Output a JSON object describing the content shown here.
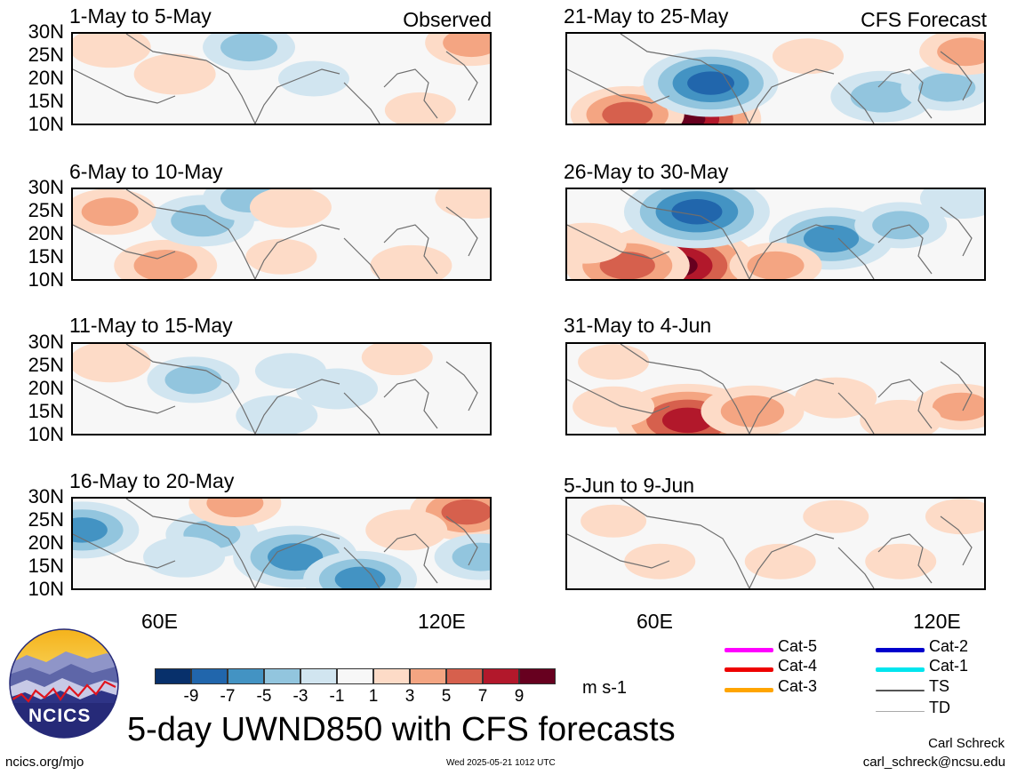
{
  "title": "5-day UWND850 with CFS forecasts",
  "units": "m s-1",
  "site": "ncics.org/mjo",
  "timestamp": "Wed 2025-05-21 1012 UTC",
  "author": "Carl Schreck",
  "email": "carl_schreck@ncsu.edu",
  "logo_text": "NCICS",
  "observed_label": "Observed",
  "forecast_label": "CFS Forecast",
  "y_ticks": [
    "30N",
    "25N",
    "20N",
    "15N",
    "10N"
  ],
  "x_ticks": [
    "60E",
    "120E"
  ],
  "colorbar": {
    "colors": [
      "#08306b",
      "#2166ac",
      "#4393c3",
      "#92c5de",
      "#d1e5f0",
      "#f7f7f7",
      "#fddbc7",
      "#f4a582",
      "#d6604d",
      "#b2182b",
      "#67001f"
    ],
    "labels": [
      "-9",
      "-7",
      "-5",
      "-3",
      "-1",
      "1",
      "3",
      "5",
      "7",
      "9"
    ]
  },
  "legend": [
    {
      "label": "Cat-5",
      "color": "#ff00ff"
    },
    {
      "label": "Cat-4",
      "color": "#ee0000"
    },
    {
      "label": "Cat-3",
      "color": "#ffa500"
    },
    {
      "label": "Cat-2",
      "color": "#0000cc"
    },
    {
      "label": "Cat-1",
      "color": "#00e5ee"
    },
    {
      "label": "TS",
      "color": "#555555"
    },
    {
      "label": "TD",
      "color": "#aaaaaa"
    }
  ],
  "chart_data": [
    {
      "type": "heatmap",
      "title": "1-May to 5-May",
      "group": "Observed",
      "x_range": [
        "40E",
        "130E"
      ],
      "y_range": [
        "10N",
        "30N"
      ],
      "blobs": [
        {
          "lon": 62,
          "lat": 21,
          "value": 3
        },
        {
          "lon": 78,
          "lat": 27,
          "value": -4
        },
        {
          "lon": 48,
          "lat": 27,
          "value": 3
        },
        {
          "lon": 92,
          "lat": 20,
          "value": -2
        },
        {
          "lon": 115,
          "lat": 13,
          "value": 2
        },
        {
          "lon": 126,
          "lat": 28,
          "value": 4
        }
      ]
    },
    {
      "type": "heatmap",
      "title": "6-May to 10-May",
      "group": "Observed",
      "x_range": [
        "40E",
        "130E"
      ],
      "y_range": [
        "10N",
        "30N"
      ],
      "blobs": [
        {
          "lon": 60,
          "lat": 13,
          "value": 5
        },
        {
          "lon": 68,
          "lat": 23,
          "value": -5
        },
        {
          "lon": 48,
          "lat": 25,
          "value": 4
        },
        {
          "lon": 78,
          "lat": 28,
          "value": -4
        },
        {
          "lon": 87,
          "lat": 26,
          "value": 3
        },
        {
          "lon": 85,
          "lat": 15,
          "value": 2
        },
        {
          "lon": 113,
          "lat": 13,
          "value": 3
        },
        {
          "lon": 127,
          "lat": 28,
          "value": 3
        }
      ]
    },
    {
      "type": "heatmap",
      "title": "11-May to 15-May",
      "group": "Observed",
      "x_range": [
        "40E",
        "130E"
      ],
      "y_range": [
        "10N",
        "30N"
      ],
      "blobs": [
        {
          "lon": 66,
          "lat": 22,
          "value": -4
        },
        {
          "lon": 84,
          "lat": 14,
          "value": -3
        },
        {
          "lon": 97,
          "lat": 20,
          "value": -3
        },
        {
          "lon": 48,
          "lat": 26,
          "value": 3
        },
        {
          "lon": 110,
          "lat": 27,
          "value": 2
        },
        {
          "lon": 87,
          "lat": 24,
          "value": -2
        }
      ]
    },
    {
      "type": "heatmap",
      "title": "16-May to 20-May",
      "group": "Observed",
      "x_range": [
        "40E",
        "130E"
      ],
      "y_range": [
        "10N",
        "30N"
      ],
      "blobs": [
        {
          "lon": 42,
          "lat": 23,
          "value": -6
        },
        {
          "lon": 88,
          "lat": 17,
          "value": -7
        },
        {
          "lon": 102,
          "lat": 12,
          "value": -6
        },
        {
          "lon": 70,
          "lat": 22,
          "value": -4
        },
        {
          "lon": 64,
          "lat": 17,
          "value": -3
        },
        {
          "lon": 125,
          "lat": 27,
          "value": 6
        },
        {
          "lon": 75,
          "lat": 29,
          "value": 4
        },
        {
          "lon": 112,
          "lat": 23,
          "value": 3
        },
        {
          "lon": 128,
          "lat": 17,
          "value": -4
        }
      ]
    },
    {
      "type": "heatmap",
      "title": "21-May to 25-May",
      "group": "CFS Forecast",
      "x_range": [
        "40E",
        "130E"
      ],
      "y_range": [
        "10N",
        "30N"
      ],
      "blobs": [
        {
          "lon": 65,
          "lat": 11,
          "value": 10
        },
        {
          "lon": 53,
          "lat": 12,
          "value": 6
        },
        {
          "lon": 71,
          "lat": 19,
          "value": -8
        },
        {
          "lon": 108,
          "lat": 16,
          "value": -5
        },
        {
          "lon": 122,
          "lat": 18,
          "value": -4
        },
        {
          "lon": 126,
          "lat": 26,
          "value": 4
        },
        {
          "lon": 92,
          "lat": 25,
          "value": 2
        }
      ]
    },
    {
      "type": "heatmap",
      "title": "26-May to 30-May",
      "group": "CFS Forecast",
      "x_range": [
        "40E",
        "130E"
      ],
      "y_range": [
        "10N",
        "30N"
      ],
      "blobs": [
        {
          "lon": 63,
          "lat": 13,
          "value": 11
        },
        {
          "lon": 53,
          "lat": 13,
          "value": 7
        },
        {
          "lon": 68,
          "lat": 25,
          "value": -9
        },
        {
          "lon": 97,
          "lat": 19,
          "value": -7
        },
        {
          "lon": 112,
          "lat": 22,
          "value": -4
        },
        {
          "lon": 85,
          "lat": 13,
          "value": 4
        },
        {
          "lon": 125,
          "lat": 28,
          "value": -3
        },
        {
          "lon": 44,
          "lat": 18,
          "value": 3
        }
      ]
    },
    {
      "type": "heatmap",
      "title": "31-May to 4-Jun",
      "group": "CFS Forecast",
      "x_range": [
        "40E",
        "130E"
      ],
      "y_range": [
        "10N",
        "30N"
      ],
      "blobs": [
        {
          "lon": 66,
          "lat": 13,
          "value": 9
        },
        {
          "lon": 80,
          "lat": 15,
          "value": 5
        },
        {
          "lon": 50,
          "lat": 16,
          "value": 3
        },
        {
          "lon": 125,
          "lat": 16,
          "value": 4
        },
        {
          "lon": 98,
          "lat": 18,
          "value": 3
        },
        {
          "lon": 112,
          "lat": 13,
          "value": 3
        },
        {
          "lon": 50,
          "lat": 26,
          "value": 2
        }
      ]
    },
    {
      "type": "heatmap",
      "title": "5-Jun to 9-Jun",
      "group": "CFS Forecast",
      "x_range": [
        "40E",
        "130E"
      ],
      "y_range": [
        "10N",
        "30N"
      ],
      "blobs": [
        {
          "lon": 60,
          "lat": 16,
          "value": 2
        },
        {
          "lon": 86,
          "lat": 16,
          "value": 2
        },
        {
          "lon": 112,
          "lat": 16,
          "value": 2
        },
        {
          "lon": 50,
          "lat": 25,
          "value": 1.5
        },
        {
          "lon": 98,
          "lat": 26,
          "value": 1.5
        },
        {
          "lon": 125,
          "lat": 26,
          "value": 2
        }
      ]
    }
  ]
}
